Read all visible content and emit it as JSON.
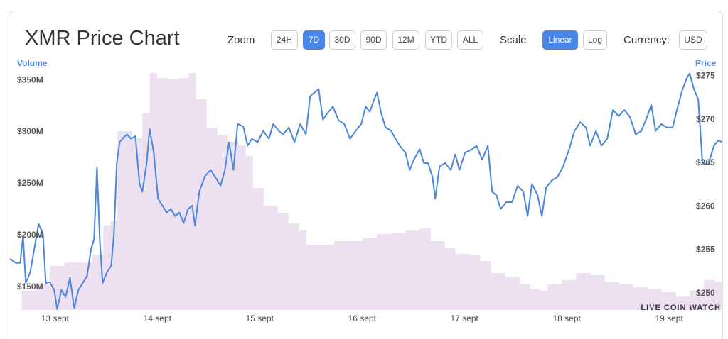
{
  "header": {
    "title": "XMR Price Chart",
    "zoom_label": "Zoom",
    "zoom_buttons": [
      {
        "label": "24H",
        "active": false
      },
      {
        "label": "7D",
        "active": true
      },
      {
        "label": "30D",
        "active": false
      },
      {
        "label": "90D",
        "active": false
      },
      {
        "label": "12M",
        "active": false
      },
      {
        "label": "YTD",
        "active": false
      },
      {
        "label": "ALL",
        "active": false
      }
    ],
    "scale_label": "Scale",
    "scale_buttons": [
      {
        "label": "Linear",
        "active": true
      },
      {
        "label": "Log",
        "active": false
      }
    ],
    "currency_label": "Currency:",
    "currency_button": "USD"
  },
  "chart_data": {
    "type": "line",
    "ylabel": "Volume",
    "y2label": "Price",
    "watermark": "LIVE COIN WATCH",
    "xlim": [
      12.56,
      19.52
    ],
    "xticks": [
      {
        "value": 13,
        "label": "13 sept"
      },
      {
        "value": 14,
        "label": "14 sept"
      },
      {
        "value": 15,
        "label": "15 sept"
      },
      {
        "value": 16,
        "label": "16 sept"
      },
      {
        "value": 17,
        "label": "17 sept"
      },
      {
        "value": 18,
        "label": "18 sept"
      },
      {
        "value": 19,
        "label": "19 sept"
      }
    ],
    "ylim": [
      128000000,
      359000000
    ],
    "yticks": [
      {
        "value": 150000000,
        "label": "$150M"
      },
      {
        "value": 200000000,
        "label": "$200M"
      },
      {
        "value": 250000000,
        "label": "$250M"
      },
      {
        "value": 300000000,
        "label": "$300M"
      },
      {
        "value": 350000000,
        "label": "$350M"
      }
    ],
    "y2lim": [
      248.1,
      275.6
    ],
    "y2ticks": [
      {
        "value": 250,
        "label": "$250"
      },
      {
        "value": 255,
        "label": "$255"
      },
      {
        "value": 260,
        "label": "$260"
      },
      {
        "value": 265,
        "label": "$265"
      },
      {
        "value": 270,
        "label": "$270"
      },
      {
        "value": 275,
        "label": "$275"
      }
    ],
    "series": [
      {
        "kind": "bar",
        "color": "#ede1f1",
        "x": [
          12.56,
          12.674,
          12.813,
          12.951,
          13.09,
          13.229,
          13.368,
          13.472,
          13.542,
          13.611,
          13.681,
          13.75,
          13.854,
          13.924,
          13.993,
          14.097,
          14.201,
          14.306,
          14.375,
          14.479,
          14.583,
          14.688,
          14.792,
          14.861,
          14.931,
          15.035,
          15.174,
          15.278,
          15.382,
          15.451,
          15.59,
          15.729,
          15.868,
          16.007,
          16.146,
          16.285,
          16.424,
          16.563,
          16.667,
          16.806,
          16.91,
          17.049,
          17.153,
          17.257,
          17.396,
          17.535,
          17.639,
          17.743,
          17.813,
          17.951,
          18.09,
          18.229,
          18.368,
          18.507,
          18.646,
          18.785,
          18.924,
          19.063,
          19.201,
          19.34,
          19.444
        ],
        "values": [
          128100000,
          146600000,
          153400000,
          170500000,
          174000000,
          174000000,
          180800000,
          209600000,
          213700000,
          300700000,
          300700000,
          293900000,
          317800000,
          356900000,
          352100000,
          350700000,
          352100000,
          356900000,
          331500000,
          304100000,
          297300000,
          290400000,
          287000000,
          276700000,
          245900000,
          228800000,
          221900000,
          211700000,
          204800000,
          191100000,
          191100000,
          194500000,
          194500000,
          198000000,
          201400000,
          202700000,
          204800000,
          206900000,
          194500000,
          187700000,
          182200000,
          180800000,
          175300000,
          163700000,
          160300000,
          153400000,
          148000000,
          146600000,
          152700000,
          156900000,
          163700000,
          161600000,
          154800000,
          152700000,
          150000000,
          148000000,
          145200000,
          141100000,
          146600000,
          156900000,
          154800000
        ]
      },
      {
        "kind": "line",
        "axis": "y2",
        "color": "#4a86dc",
        "x": [
          12.56,
          12.618,
          12.66,
          12.688,
          12.715,
          12.757,
          12.799,
          12.84,
          12.882,
          12.91,
          12.951,
          12.993,
          13.021,
          13.063,
          13.104,
          13.146,
          13.188,
          13.229,
          13.271,
          13.313,
          13.354,
          13.382,
          13.41,
          13.438,
          13.465,
          13.507,
          13.549,
          13.576,
          13.604,
          13.632,
          13.66,
          13.701,
          13.743,
          13.785,
          13.826,
          13.854,
          13.896,
          13.924,
          13.965,
          14.007,
          14.049,
          14.09,
          14.132,
          14.174,
          14.215,
          14.257,
          14.299,
          14.34,
          14.368,
          14.41,
          14.465,
          14.521,
          14.576,
          14.618,
          14.66,
          14.701,
          14.743,
          14.785,
          14.84,
          14.882,
          14.924,
          14.979,
          15.035,
          15.09,
          15.132,
          15.188,
          15.229,
          15.285,
          15.34,
          15.396,
          15.451,
          15.493,
          15.535,
          15.576,
          15.618,
          15.66,
          15.715,
          15.771,
          15.826,
          15.882,
          15.938,
          15.993,
          16.035,
          16.076,
          16.118,
          16.146,
          16.188,
          16.229,
          16.285,
          16.326,
          16.368,
          16.424,
          16.465,
          16.507,
          16.563,
          16.604,
          16.646,
          16.688,
          16.715,
          16.757,
          16.813,
          16.868,
          16.91,
          16.951,
          17.007,
          17.063,
          17.118,
          17.174,
          17.229,
          17.271,
          17.313,
          17.354,
          17.41,
          17.465,
          17.521,
          17.576,
          17.618,
          17.66,
          17.715,
          17.757,
          17.799,
          17.854,
          17.91,
          17.965,
          18.021,
          18.076,
          18.132,
          18.188,
          18.229,
          18.285,
          18.34,
          18.396,
          18.451,
          18.507,
          18.563,
          18.618,
          18.674,
          18.729,
          18.785,
          18.826,
          18.868,
          18.924,
          18.979,
          19.035,
          19.076,
          19.132,
          19.174,
          19.201,
          19.243,
          19.285,
          19.326,
          19.382,
          19.438,
          19.479,
          19.52
        ],
        "values": [
          254.0,
          253.5,
          253.5,
          256.6,
          251.2,
          252.4,
          255.2,
          258.0,
          256.9,
          251.2,
          251.3,
          250.4,
          248.2,
          250.4,
          249.6,
          251.8,
          248.3,
          250.4,
          251.2,
          252.0,
          255.2,
          256.2,
          264.5,
          256.1,
          251.2,
          252.4,
          253.2,
          256.9,
          265.0,
          267.4,
          267.8,
          268.3,
          267.8,
          268.1,
          262.6,
          261.7,
          265.0,
          268.9,
          266.2,
          260.9,
          260.1,
          259.3,
          259.7,
          258.9,
          259.3,
          258.1,
          259.7,
          260.1,
          257.8,
          261.7,
          263.5,
          264.2,
          263.2,
          262.4,
          264.2,
          267.4,
          264.2,
          269.5,
          269.2,
          267.0,
          267.8,
          267.4,
          268.7,
          267.8,
          269.5,
          268.7,
          268.3,
          269.1,
          267.4,
          269.5,
          268.3,
          272.7,
          273.1,
          273.5,
          270.0,
          270.7,
          271.5,
          269.9,
          269.5,
          267.8,
          268.7,
          269.5,
          271.5,
          270.9,
          272.3,
          273.1,
          270.7,
          269.1,
          268.7,
          267.8,
          267.0,
          266.2,
          264.2,
          265.4,
          266.6,
          265.0,
          265.0,
          263.4,
          260.9,
          264.6,
          265.0,
          264.2,
          266.0,
          264.2,
          266.2,
          266.5,
          267.0,
          265.4,
          267.0,
          261.7,
          261.3,
          259.7,
          260.5,
          260.5,
          262.4,
          261.7,
          258.9,
          262.6,
          261.3,
          258.9,
          262.2,
          263.0,
          263.4,
          264.6,
          266.5,
          268.7,
          269.7,
          269.1,
          267.0,
          268.7,
          267.0,
          267.8,
          271.1,
          270.4,
          271.1,
          270.3,
          268.3,
          268.7,
          270.3,
          271.7,
          268.7,
          269.5,
          269.1,
          269.1,
          271.1,
          273.5,
          274.8,
          275.3,
          273.5,
          272.3,
          265.0,
          264.8,
          267.0,
          267.6,
          267.4
        ]
      }
    ]
  }
}
